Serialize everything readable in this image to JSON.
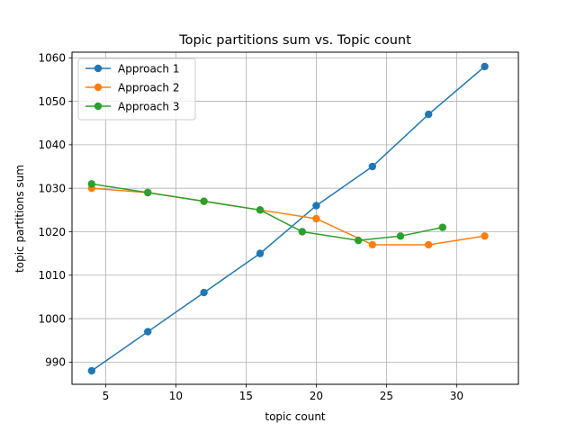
{
  "chart_data": {
    "type": "line",
    "title": "Topic partitions sum vs. Topic count",
    "xlabel": "topic count",
    "ylabel": "topic partitions sum",
    "xlim": [
      2.6,
      34.4
    ],
    "ylim": [
      984.9,
      1061.3
    ],
    "xticks": [
      5,
      10,
      15,
      20,
      25,
      30
    ],
    "yticks": [
      990,
      1000,
      1010,
      1020,
      1030,
      1040,
      1050,
      1060
    ],
    "grid": true,
    "legend_position": "top-left",
    "marker": "circle",
    "series": [
      {
        "name": "Approach 1",
        "color": "#1f77b4",
        "x": [
          4,
          8,
          12,
          16,
          20,
          24,
          28,
          32
        ],
        "y": [
          988,
          997,
          1006,
          1015,
          1026,
          1035,
          1047,
          1058
        ]
      },
      {
        "name": "Approach 2",
        "color": "#ff7f0e",
        "x": [
          4,
          8,
          12,
          16,
          20,
          24,
          28,
          32
        ],
        "y": [
          1030,
          1029,
          1027,
          1025,
          1023,
          1017,
          1017,
          1019
        ]
      },
      {
        "name": "Approach 3",
        "color": "#2ca02c",
        "x": [
          4,
          8,
          12,
          16,
          19,
          23,
          26,
          29
        ],
        "y": [
          1031,
          1029,
          1027,
          1025,
          1020,
          1018,
          1019,
          1021
        ]
      }
    ]
  }
}
